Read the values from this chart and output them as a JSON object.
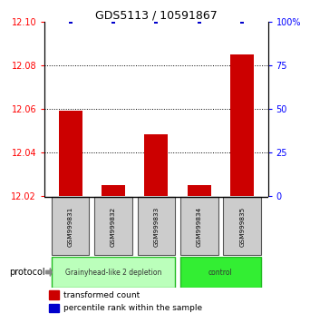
{
  "title": "GDS5113 / 10591867",
  "samples": [
    "GSM999831",
    "GSM999832",
    "GSM999833",
    "GSM999834",
    "GSM999835"
  ],
  "red_values": [
    12.059,
    12.025,
    12.048,
    12.025,
    12.085
  ],
  "blue_values": [
    100,
    100,
    100,
    100,
    100
  ],
  "ylim_left": [
    12.02,
    12.1
  ],
  "ylim_right": [
    0,
    100
  ],
  "yticks_left": [
    12.02,
    12.04,
    12.06,
    12.08,
    12.1
  ],
  "yticks_right": [
    0,
    25,
    50,
    75,
    100
  ],
  "ytick_labels_right": [
    "0",
    "25",
    "50",
    "75",
    "100%"
  ],
  "groups": [
    {
      "label": "Grainyhead-like 2 depletion",
      "samples_idx": [
        0,
        1,
        2
      ],
      "color": "#bbffbb",
      "border": "#22bb22"
    },
    {
      "label": "control",
      "samples_idx": [
        3,
        4
      ],
      "color": "#33ee33",
      "border": "#22bb22"
    }
  ],
  "bar_color": "#cc0000",
  "dot_color": "#0000cc",
  "grid_color": "#000000",
  "bar_width": 0.55,
  "protocol_label": "protocol",
  "legend_red": "transformed count",
  "legend_blue": "percentile rank within the sample",
  "bg_color": "#ffffff",
  "sample_box_color": "#cccccc",
  "sample_box_border": "#555555"
}
